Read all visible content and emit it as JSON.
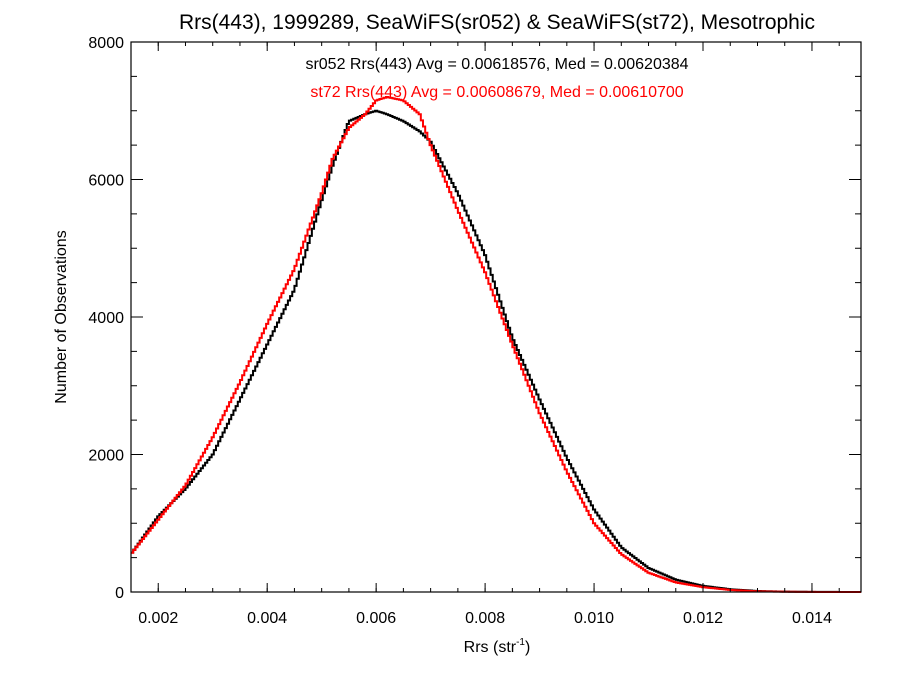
{
  "chart_data": {
    "type": "line",
    "title": "Rrs(443), 1999289, SeaWiFS(sr052) & SeaWiFS(st72), Mesotrophic",
    "xlabel_main": "Rrs (str",
    "xlabel_sup": "-1",
    "xlabel_close": ")",
    "ylabel": "Number of Observations",
    "xlim": [
      0.0015,
      0.0149
    ],
    "ylim": [
      0,
      8000
    ],
    "x_ticks": [
      0.002,
      0.004,
      0.006,
      0.008,
      0.01,
      0.012,
      0.014
    ],
    "x_tick_labels": [
      "0.002",
      "0.004",
      "0.006",
      "0.008",
      "0.010",
      "0.012",
      "0.014"
    ],
    "y_ticks": [
      0,
      2000,
      4000,
      6000,
      8000
    ],
    "y_tick_labels": [
      "0",
      "2000",
      "4000",
      "6000",
      "8000"
    ],
    "grid": false,
    "step_style": true,
    "series": [
      {
        "name": "sr052",
        "color": "#000000",
        "stats_label": "sr052 Rrs(443) Avg = 0.00618576, Med = 0.00620384",
        "x": [
          0.0015,
          0.002,
          0.0025,
          0.003,
          0.0035,
          0.004,
          0.0045,
          0.005,
          0.0052,
          0.0055,
          0.0058,
          0.006,
          0.0062,
          0.0065,
          0.0068,
          0.007,
          0.0075,
          0.008,
          0.0085,
          0.009,
          0.0095,
          0.01,
          0.0105,
          0.011,
          0.0115,
          0.012,
          0.0125,
          0.013,
          0.0135,
          0.014,
          0.0149
        ],
        "y": [
          550,
          1100,
          1500,
          2000,
          2800,
          3600,
          4400,
          5700,
          6200,
          6850,
          6950,
          7000,
          6950,
          6850,
          6700,
          6550,
          5800,
          4900,
          3700,
          2800,
          1950,
          1200,
          650,
          350,
          180,
          90,
          40,
          15,
          5,
          2,
          0
        ]
      },
      {
        "name": "st72",
        "color": "#ff0000",
        "stats_label": "st72 Rrs(443) Avg = 0.00608679, Med = 0.00610700",
        "x": [
          0.0015,
          0.002,
          0.0025,
          0.003,
          0.0035,
          0.004,
          0.0045,
          0.005,
          0.0052,
          0.0055,
          0.0058,
          0.006,
          0.0062,
          0.0065,
          0.0068,
          0.007,
          0.0075,
          0.008,
          0.0085,
          0.009,
          0.0095,
          0.01,
          0.0105,
          0.011,
          0.0115,
          0.012,
          0.0125,
          0.013,
          0.0135,
          0.014,
          0.0149
        ],
        "y": [
          550,
          1050,
          1550,
          2250,
          3050,
          3900,
          4700,
          5800,
          6300,
          6750,
          6950,
          7150,
          7200,
          7150,
          6950,
          6500,
          5550,
          4650,
          3600,
          2600,
          1750,
          1000,
          550,
          280,
          140,
          70,
          30,
          10,
          4,
          1,
          0
        ]
      }
    ]
  }
}
